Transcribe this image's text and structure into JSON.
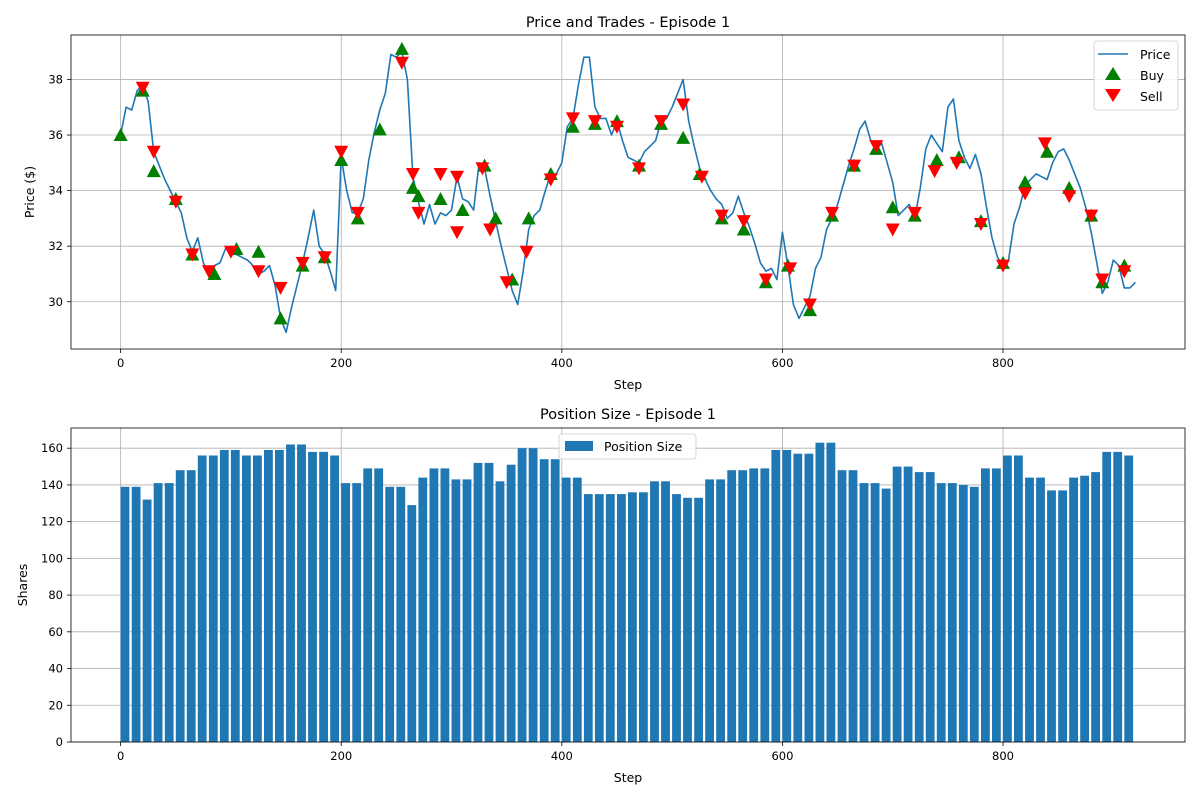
{
  "chart_data": [
    {
      "type": "line",
      "title": "Price and Trades - Episode 1",
      "xlabel": "Step",
      "ylabel": "Price ($)",
      "xlim": [
        -45,
        965
      ],
      "ylim": [
        28.3,
        39.6
      ],
      "xticks": [
        0,
        200,
        400,
        600,
        800
      ],
      "yticks": [
        30,
        32,
        34,
        36,
        38
      ],
      "grid": true,
      "legend_position": "top-right",
      "colors": {
        "price": "#1f77b4",
        "buy": "#008000",
        "sell": "#ff0000"
      },
      "series": [
        {
          "name": "Price",
          "kind": "line",
          "x": [
            0,
            5,
            10,
            15,
            20,
            25,
            30,
            35,
            40,
            45,
            50,
            55,
            60,
            65,
            70,
            75,
            80,
            85,
            90,
            95,
            100,
            105,
            110,
            115,
            120,
            125,
            130,
            135,
            140,
            145,
            150,
            155,
            160,
            165,
            170,
            175,
            180,
            185,
            190,
            195,
            200,
            205,
            210,
            215,
            220,
            225,
            230,
            235,
            240,
            245,
            250,
            255,
            260,
            265,
            270,
            275,
            280,
            285,
            290,
            295,
            300,
            305,
            310,
            315,
            320,
            325,
            330,
            335,
            340,
            345,
            350,
            355,
            360,
            365,
            370,
            375,
            380,
            385,
            390,
            395,
            400,
            405,
            410,
            415,
            420,
            425,
            430,
            435,
            440,
            445,
            450,
            455,
            460,
            465,
            470,
            475,
            480,
            485,
            490,
            495,
            500,
            505,
            510,
            515,
            520,
            525,
            530,
            535,
            540,
            545,
            550,
            555,
            560,
            565,
            570,
            575,
            580,
            585,
            590,
            595,
            600,
            605,
            610,
            615,
            620,
            625,
            630,
            635,
            640,
            645,
            650,
            655,
            660,
            665,
            670,
            675,
            680,
            685,
            690,
            695,
            700,
            705,
            710,
            715,
            720,
            725,
            730,
            735,
            740,
            745,
            750,
            755,
            760,
            765,
            770,
            775,
            780,
            785,
            790,
            795,
            800,
            805,
            810,
            815,
            820,
            825,
            830,
            835,
            840,
            845,
            850,
            855,
            860,
            865,
            870,
            875,
            880,
            885,
            890,
            895,
            900,
            905,
            910,
            915,
            920
          ],
          "values": [
            36.0,
            37.0,
            36.9,
            37.6,
            37.8,
            37.2,
            35.4,
            34.9,
            34.4,
            34.0,
            33.6,
            33.2,
            32.3,
            31.8,
            32.3,
            31.4,
            31.0,
            31.3,
            31.4,
            31.9,
            32.0,
            31.7,
            31.6,
            31.5,
            31.3,
            31.0,
            31.1,
            31.3,
            30.6,
            29.4,
            28.9,
            29.8,
            30.6,
            31.4,
            32.3,
            33.3,
            32.0,
            31.7,
            31.1,
            30.4,
            35.2,
            34.0,
            33.2,
            33.2,
            33.7,
            35.1,
            36.1,
            36.9,
            37.5,
            38.9,
            38.8,
            39.0,
            38.0,
            34.5,
            33.6,
            32.8,
            33.5,
            32.8,
            33.2,
            33.1,
            33.3,
            34.5,
            33.7,
            33.6,
            33.3,
            35.0,
            34.8,
            33.8,
            32.9,
            32.0,
            31.2,
            30.4,
            29.9,
            31.1,
            32.6,
            33.1,
            33.3,
            34.0,
            34.6,
            34.6,
            35.0,
            36.3,
            36.6,
            37.8,
            38.8,
            38.8,
            37.0,
            36.6,
            36.6,
            36.0,
            36.5,
            35.8,
            35.2,
            35.1,
            35.0,
            35.4,
            35.6,
            35.8,
            36.5,
            36.6,
            37.0,
            37.5,
            38.0,
            36.5,
            35.6,
            34.8,
            34.4,
            34.0,
            33.7,
            33.5,
            33.0,
            33.2,
            33.8,
            33.2,
            32.7,
            32.1,
            31.4,
            31.1,
            31.2,
            30.8,
            32.5,
            31.3,
            29.9,
            29.4,
            29.8,
            30.2,
            31.2,
            31.6,
            32.6,
            33.0,
            33.5,
            34.2,
            34.9,
            35.5,
            36.2,
            36.5,
            35.8,
            35.5,
            35.7,
            35.0,
            34.3,
            33.1,
            33.3,
            33.5,
            33.0,
            34.1,
            35.5,
            36.0,
            35.7,
            35.4,
            37.0,
            37.3,
            35.8,
            35.2,
            34.8,
            35.3,
            34.6,
            33.4,
            32.3,
            31.6,
            31.3,
            31.5,
            32.8,
            33.4,
            34.2,
            34.4,
            34.6,
            34.5,
            34.4,
            35.0,
            35.4,
            35.5,
            35.1,
            34.6,
            34.1,
            33.4,
            32.5,
            31.4,
            30.3,
            30.7,
            31.5,
            31.3,
            30.5,
            30.5,
            30.7
          ]
        },
        {
          "name": "Buy",
          "kind": "marker",
          "x": [
            0,
            20,
            30,
            50,
            65,
            85,
            105,
            125,
            145,
            165,
            185,
            200,
            215,
            235,
            255,
            265,
            270,
            290,
            310,
            330,
            340,
            355,
            370,
            390,
            410,
            430,
            450,
            470,
            490,
            510,
            525,
            545,
            565,
            585,
            605,
            625,
            645,
            665,
            685,
            700,
            720,
            740,
            760,
            780,
            800,
            820,
            840,
            860,
            880,
            890,
            910
          ],
          "values": [
            36.0,
            37.6,
            34.7,
            33.7,
            31.7,
            31.0,
            31.9,
            31.8,
            29.4,
            31.3,
            31.6,
            35.1,
            33.0,
            36.2,
            39.1,
            34.1,
            33.8,
            33.7,
            33.3,
            34.9,
            33.0,
            30.8,
            33.0,
            34.6,
            36.3,
            36.4,
            36.5,
            34.9,
            36.4,
            35.9,
            34.6,
            33.0,
            32.6,
            30.7,
            31.3,
            29.7,
            33.1,
            34.9,
            35.5,
            33.4,
            33.1,
            35.1,
            35.2,
            32.9,
            31.4,
            34.3,
            35.4,
            34.1,
            33.1,
            30.7,
            31.3
          ]
        },
        {
          "name": "Sell",
          "kind": "marker",
          "x": [
            20,
            30,
            50,
            65,
            80,
            100,
            125,
            145,
            165,
            185,
            200,
            215,
            255,
            265,
            270,
            290,
            305,
            305,
            328,
            335,
            350,
            368,
            390,
            410,
            430,
            450,
            470,
            490,
            510,
            527,
            545,
            565,
            585,
            607,
            625,
            645,
            665,
            685,
            700,
            720,
            738,
            758,
            780,
            800,
            820,
            838,
            860,
            880,
            890,
            910
          ],
          "values": [
            37.7,
            35.4,
            33.6,
            31.7,
            31.1,
            31.8,
            31.1,
            30.5,
            31.4,
            31.6,
            35.4,
            33.2,
            38.6,
            34.6,
            33.2,
            34.6,
            34.5,
            32.5,
            34.8,
            32.6,
            30.7,
            31.8,
            34.4,
            36.6,
            36.5,
            36.3,
            34.8,
            36.5,
            37.1,
            34.5,
            33.1,
            32.9,
            30.8,
            31.2,
            29.9,
            33.2,
            34.9,
            35.6,
            32.6,
            33.2,
            34.7,
            35.0,
            32.8,
            31.3,
            33.9,
            35.7,
            33.8,
            33.1,
            30.8,
            31.1
          ]
        }
      ]
    },
    {
      "type": "bar",
      "title": "Position Size - Episode 1",
      "xlabel": "Step",
      "ylabel": "Shares",
      "xlim": [
        -45,
        965
      ],
      "ylim": [
        0,
        171
      ],
      "xticks": [
        0,
        200,
        400,
        600,
        800
      ],
      "yticks": [
        0,
        20,
        40,
        60,
        80,
        100,
        120,
        140,
        160
      ],
      "grid": true,
      "legend_position": "top-center",
      "colors": {
        "bars": "#1f77b4"
      },
      "series": [
        {
          "name": "Position Size",
          "x": [
            0,
            10,
            20,
            30,
            40,
            50,
            60,
            70,
            80,
            90,
            100,
            110,
            120,
            130,
            140,
            150,
            160,
            170,
            180,
            190,
            200,
            210,
            220,
            230,
            240,
            250,
            260,
            270,
            280,
            290,
            300,
            310,
            320,
            330,
            340,
            350,
            360,
            370,
            380,
            390,
            400,
            410,
            420,
            430,
            440,
            450,
            460,
            470,
            480,
            490,
            500,
            510,
            520,
            530,
            540,
            550,
            560,
            570,
            580,
            590,
            600,
            610,
            620,
            630,
            640,
            650,
            660,
            670,
            680,
            690,
            700,
            710,
            720,
            730,
            740,
            750,
            760,
            770,
            780,
            790,
            800,
            810,
            820,
            830,
            840,
            850,
            860,
            870,
            880,
            890,
            900,
            910
          ],
          "values": [
            139,
            139,
            132,
            141,
            141,
            148,
            148,
            156,
            156,
            159,
            159,
            156,
            156,
            159,
            159,
            162,
            162,
            158,
            158,
            156,
            141,
            141,
            149,
            149,
            139,
            139,
            129,
            144,
            149,
            149,
            143,
            143,
            152,
            152,
            142,
            151,
            160,
            160,
            154,
            154,
            144,
            144,
            135,
            135,
            135,
            135,
            136,
            136,
            142,
            142,
            135,
            133,
            133,
            143,
            143,
            148,
            148,
            149,
            149,
            159,
            159,
            157,
            157,
            163,
            163,
            148,
            148,
            141,
            141,
            138,
            150,
            150,
            147,
            147,
            141,
            141,
            140,
            139,
            149,
            149,
            156,
            156,
            144,
            144,
            137,
            137,
            144,
            145,
            147,
            158,
            158,
            156
          ]
        }
      ]
    }
  ]
}
